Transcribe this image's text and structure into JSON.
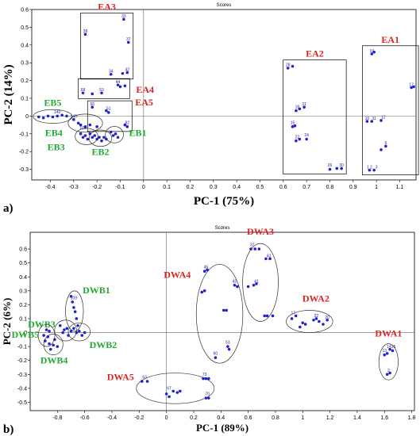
{
  "chart_data": [
    {
      "type": "scatter",
      "panel_label": "a)",
      "title": "Scores",
      "xlabel": "PC-1 (75%)",
      "ylabel": "PC-2 (14%)",
      "xlim": [
        -0.48,
        1.17
      ],
      "ylim": [
        -0.36,
        0.6
      ],
      "xticks": [
        "-0.4",
        "-0.3",
        "-0.2",
        "-0.1",
        "0",
        "0.1",
        "0.2",
        "0.3",
        "0.4",
        "0.5",
        "0.6",
        "0.7",
        "0.8",
        "0.9",
        "1",
        "1.1"
      ],
      "yticks": [
        "0.6",
        "0.5",
        "0.4",
        "0.3",
        "0.2",
        "0.1",
        "0",
        "-0.1",
        "-0.2",
        "-0.3"
      ],
      "color": "#2222cc",
      "groups": [
        {
          "name": "EA1",
          "label_color": "#dd2222",
          "box": true,
          "points": [
            [
              0.98,
              0.35
            ],
            [
              0.99,
              0.36
            ],
            [
              1.15,
              0.16
            ],
            [
              1.16,
              0.165
            ],
            [
              0.96,
              -0.03
            ],
            [
              0.98,
              -0.03
            ],
            [
              1.02,
              -0.025
            ],
            [
              1.02,
              -0.19
            ],
            [
              1.04,
              -0.17
            ],
            [
              0.97,
              -0.305
            ],
            [
              0.99,
              -0.305
            ]
          ],
          "labels": [
            [
              "19",
              0.98,
              0.36
            ],
            [
              "17",
              1.15,
              0.17
            ],
            [
              "10",
              0.96,
              -0.02
            ],
            [
              "11",
              0.99,
              -0.02
            ],
            [
              "12",
              1.03,
              -0.015
            ],
            [
              "6",
              1.04,
              -0.16
            ],
            [
              "1 2",
              0.97,
              -0.295
            ],
            [
              "3",
              1.0,
              -0.295
            ]
          ]
        },
        {
          "name": "EA2",
          "label_color": "#dd2222",
          "box": true,
          "points": [
            [
              0.62,
              0.27
            ],
            [
              0.64,
              0.28
            ],
            [
              0.655,
              0.03
            ],
            [
              0.67,
              0.04
            ],
            [
              0.69,
              0.05
            ],
            [
              0.64,
              -0.06
            ],
            [
              0.65,
              -0.055
            ],
            [
              0.655,
              -0.14
            ],
            [
              0.67,
              -0.13
            ],
            [
              0.7,
              -0.13
            ],
            [
              0.8,
              -0.3
            ],
            [
              0.83,
              -0.295
            ],
            [
              0.85,
              -0.295
            ]
          ],
          "labels": [
            [
              "28",
              0.62,
              0.28
            ],
            [
              "18",
              0.66,
              0.045
            ],
            [
              "21",
              0.69,
              0.06
            ],
            [
              "15",
              0.64,
              -0.045
            ],
            [
              "22",
              0.66,
              -0.125
            ],
            [
              "24",
              0.7,
              -0.115
            ],
            [
              "26",
              0.8,
              -0.285
            ],
            [
              "30",
              0.85,
              -0.285
            ]
          ]
        },
        {
          "name": "EA3",
          "label_color": "#dd2222",
          "box": true,
          "points": [
            [
              -0.25,
              0.46
            ],
            [
              -0.085,
              0.545
            ],
            [
              -0.065,
              0.415
            ],
            [
              -0.14,
              0.235
            ],
            [
              -0.09,
              0.24
            ],
            [
              -0.07,
              0.245
            ]
          ],
          "labels": [
            [
              "38",
              -0.25,
              0.47
            ],
            [
              "33",
              -0.085,
              0.555
            ],
            [
              "37",
              -0.065,
              0.425
            ],
            [
              "34",
              -0.14,
              0.245
            ],
            [
              "42",
              -0.07,
              0.255
            ]
          ]
        },
        {
          "name": "EA4",
          "label_color": "#dd2222",
          "box": true,
          "points": [
            [
              -0.26,
              0.13
            ],
            [
              -0.22,
              0.125
            ],
            [
              -0.18,
              0.13
            ],
            [
              -0.11,
              0.175
            ],
            [
              -0.1,
              0.165
            ],
            [
              -0.08,
              0.17
            ]
          ],
          "labels": [
            [
              "58",
              -0.26,
              0.14
            ],
            [
              "53",
              -0.18,
              0.14
            ],
            [
              "44",
              -0.11,
              0.185
            ]
          ]
        },
        {
          "name": "EA5",
          "label_color": "#dd2222",
          "box": true,
          "points": [
            [
              -0.22,
              0.05
            ],
            [
              -0.16,
              0.03
            ],
            [
              -0.15,
              0.02
            ],
            [
              -0.07,
              -0.06
            ],
            [
              -0.08,
              -0.05
            ]
          ],
          "labels": [
            [
              "66",
              -0.22,
              0.06
            ],
            [
              "51",
              -0.15,
              0.035
            ],
            [
              "82",
              -0.07,
              -0.045
            ]
          ]
        },
        {
          "name": "EB1",
          "label_color": "#22aa33",
          "ellipse": true,
          "points": [
            [
              -0.14,
              -0.09
            ],
            [
              -0.13,
              -0.11
            ],
            [
              -0.12,
              -0.1
            ],
            [
              -0.11,
              -0.12
            ]
          ],
          "labels": []
        },
        {
          "name": "EB2",
          "label_color": "#22aa33",
          "ellipse": true,
          "points": [
            [
              -0.21,
              -0.11
            ],
            [
              -0.2,
              -0.13
            ],
            [
              -0.19,
              -0.12
            ],
            [
              -0.18,
              -0.14
            ],
            [
              -0.17,
              -0.12
            ],
            [
              -0.16,
              -0.13
            ]
          ],
          "labels": []
        },
        {
          "name": "EB3",
          "label_color": "#22aa33",
          "ellipse": true,
          "points": [
            [
              -0.27,
              -0.1
            ],
            [
              -0.26,
              -0.12
            ],
            [
              -0.25,
              -0.11
            ],
            [
              -0.24,
              -0.13
            ],
            [
              -0.23,
              -0.1
            ],
            [
              -0.22,
              -0.12
            ]
          ],
          "labels": [
            [
              "105",
              -0.26,
              -0.075
            ]
          ]
        },
        {
          "name": "EB4",
          "label_color": "#22aa33",
          "ellipse": true,
          "points": [
            [
              -0.3,
              -0.02
            ],
            [
              -0.28,
              -0.04
            ],
            [
              -0.27,
              -0.05
            ],
            [
              -0.25,
              -0.06
            ],
            [
              -0.23,
              -0.05
            ],
            [
              -0.2,
              -0.06
            ]
          ],
          "labels": [
            [
              "145",
              -0.3,
              -0.01
            ]
          ]
        },
        {
          "name": "EB5",
          "label_color": "#22aa33",
          "ellipse": true,
          "points": [
            [
              -0.45,
              -0.005
            ],
            [
              -0.43,
              -0.01
            ],
            [
              -0.41,
              0.0
            ],
            [
              -0.39,
              -0.005
            ],
            [
              -0.37,
              0.0
            ],
            [
              -0.35,
              0.005
            ],
            [
              -0.33,
              0.0
            ]
          ],
          "labels": [
            [
              "140",
              -0.37,
              0.015
            ]
          ]
        }
      ]
    },
    {
      "type": "scatter",
      "panel_label": "b)",
      "title": "Scores",
      "xlabel": "PC-1 (89%)",
      "ylabel": "PC-2 (6%)",
      "xlim": [
        -1.0,
        1.82
      ],
      "ylim": [
        -0.56,
        0.72
      ],
      "xticks": [
        "-0.8",
        "-0.6",
        "-0.4",
        "-0.2",
        "0",
        "0.2",
        "0.4",
        "0.6",
        "0.8",
        "1",
        "1.2",
        "1.4",
        "1.6",
        "1.8"
      ],
      "yticks": [
        "0.6",
        "0.5",
        "0.4",
        "0.3",
        "0.2",
        "0.1",
        "0",
        "-0.1",
        "-0.2",
        "-0.3",
        "-0.4",
        "-0.5"
      ],
      "color": "#2222cc",
      "groups": [
        {
          "name": "DWA1",
          "label_color": "#dd2222",
          "ellipse": true,
          "points": [
            [
              1.6,
              -0.16
            ],
            [
              1.62,
              -0.15
            ],
            [
              1.64,
              -0.12
            ],
            [
              1.66,
              -0.13
            ],
            [
              1.62,
              -0.3
            ],
            [
              1.64,
              -0.29
            ]
          ],
          "labels": [
            [
              "13",
              1.6,
              -0.14
            ],
            [
              "1415",
              1.65,
              -0.11
            ],
            [
              "2",
              1.63,
              -0.28
            ]
          ]
        },
        {
          "name": "DWA2",
          "label_color": "#dd2222",
          "ellipse": true,
          "points": [
            [
              0.92,
              0.1
            ],
            [
              0.95,
              0.12
            ],
            [
              0.98,
              0.04
            ],
            [
              1.0,
              0.07
            ],
            [
              1.02,
              0.06
            ],
            [
              1.08,
              0.09
            ],
            [
              1.1,
              0.1
            ],
            [
              1.12,
              0.08
            ],
            [
              1.15,
              0.06
            ],
            [
              1.18,
              0.09
            ]
          ],
          "labels": [
            [
              "17",
              0.93,
              0.13
            ],
            [
              "20",
              1.18,
              0.1
            ],
            [
              "22",
              1.1,
              0.11
            ]
          ]
        },
        {
          "name": "DWA3",
          "label_color": "#dd2222",
          "ellipse": true,
          "points": [
            [
              0.62,
              0.6
            ],
            [
              0.65,
              0.6
            ],
            [
              0.68,
              0.6
            ],
            [
              0.73,
              0.53
            ],
            [
              0.76,
              0.53
            ],
            [
              0.6,
              0.33
            ],
            [
              0.64,
              0.34
            ],
            [
              0.66,
              0.35
            ],
            [
              0.72,
              0.12
            ],
            [
              0.74,
              0.12
            ],
            [
              0.78,
              0.12
            ]
          ],
          "labels": [
            [
              "37",
              0.63,
              0.62
            ],
            [
              "43",
              0.75,
              0.54
            ],
            [
              "41",
              0.66,
              0.36
            ]
          ]
        },
        {
          "name": "DWA4",
          "label_color": "#dd2222",
          "ellipse": true,
          "points": [
            [
              0.28,
              0.44
            ],
            [
              0.3,
              0.45
            ],
            [
              0.26,
              0.29
            ],
            [
              0.28,
              0.3
            ],
            [
              0.5,
              0.34
            ],
            [
              0.52,
              0.33
            ],
            [
              0.42,
              0.16
            ],
            [
              0.44,
              0.16
            ],
            [
              0.45,
              -0.1
            ],
            [
              0.46,
              -0.12
            ],
            [
              0.36,
              -0.18
            ]
          ],
          "labels": [
            [
              "46",
              0.29,
              0.46
            ],
            [
              "42",
              0.5,
              0.36
            ],
            [
              "60",
              0.36,
              -0.16
            ],
            [
              "53",
              0.45,
              -0.08
            ]
          ]
        },
        {
          "name": "DWA5",
          "label_color": "#dd2222",
          "ellipse": true,
          "points": [
            [
              -0.18,
              -0.35
            ],
            [
              -0.14,
              -0.35
            ],
            [
              0.0,
              -0.44
            ],
            [
              0.02,
              -0.46
            ],
            [
              0.05,
              -0.42
            ],
            [
              0.08,
              -0.43
            ],
            [
              0.1,
              -0.42
            ],
            [
              0.27,
              -0.33
            ],
            [
              0.29,
              -0.33
            ],
            [
              0.31,
              -0.33
            ],
            [
              0.29,
              -0.47
            ],
            [
              0.31,
              -0.47
            ]
          ],
          "labels": [
            [
              "63",
              -0.16,
              -0.33
            ],
            [
              "67",
              0.02,
              -0.41
            ],
            [
              "73",
              0.28,
              -0.31
            ],
            [
              "70",
              0.3,
              -0.45
            ]
          ]
        },
        {
          "name": "DWB1",
          "label_color": "#22aa33",
          "ellipse": true,
          "points": [
            [
              -0.7,
              0.26
            ],
            [
              -0.69,
              0.22
            ],
            [
              -0.68,
              0.18
            ],
            [
              -0.67,
              0.15
            ],
            [
              -0.66,
              0.1
            ],
            [
              -0.65,
              0.05
            ]
          ],
          "labels": [
            [
              "109",
              -0.68,
              0.24
            ]
          ]
        },
        {
          "name": "DWB2",
          "label_color": "#22aa33",
          "ellipse": true,
          "points": [
            [
              -0.68,
              0.03
            ],
            [
              -0.66,
              0.0
            ],
            [
              -0.64,
              0.01
            ],
            [
              -0.62,
              -0.02
            ],
            [
              -0.6,
              0.0
            ]
          ],
          "labels": []
        },
        {
          "name": "DWB3",
          "label_color": "#22aa33",
          "ellipse": true,
          "points": [
            [
              -0.78,
              0.05
            ],
            [
              -0.76,
              0.0
            ],
            [
              -0.75,
              0.02
            ],
            [
              -0.73,
              0.03
            ],
            [
              -0.72,
              -0.02
            ],
            [
              -0.7,
              0.01
            ]
          ],
          "labels": []
        },
        {
          "name": "DWB4",
          "label_color": "#22aa33",
          "ellipse": true,
          "points": [
            [
              -0.86,
              -0.08
            ],
            [
              -0.85,
              -0.12
            ],
            [
              -0.83,
              -0.09
            ],
            [
              -0.82,
              -0.05
            ],
            [
              -0.8,
              -0.1
            ]
          ],
          "labels": []
        },
        {
          "name": "DWB5",
          "label_color": "#22aa33",
          "ellipse": true,
          "points": [
            [
              -0.9,
              -0.02
            ],
            [
              -0.89,
              -0.06
            ],
            [
              -0.88,
              0.02
            ],
            [
              -0.87,
              -0.03
            ],
            [
              -0.86,
              0.01
            ]
          ],
          "labels": []
        }
      ]
    }
  ]
}
